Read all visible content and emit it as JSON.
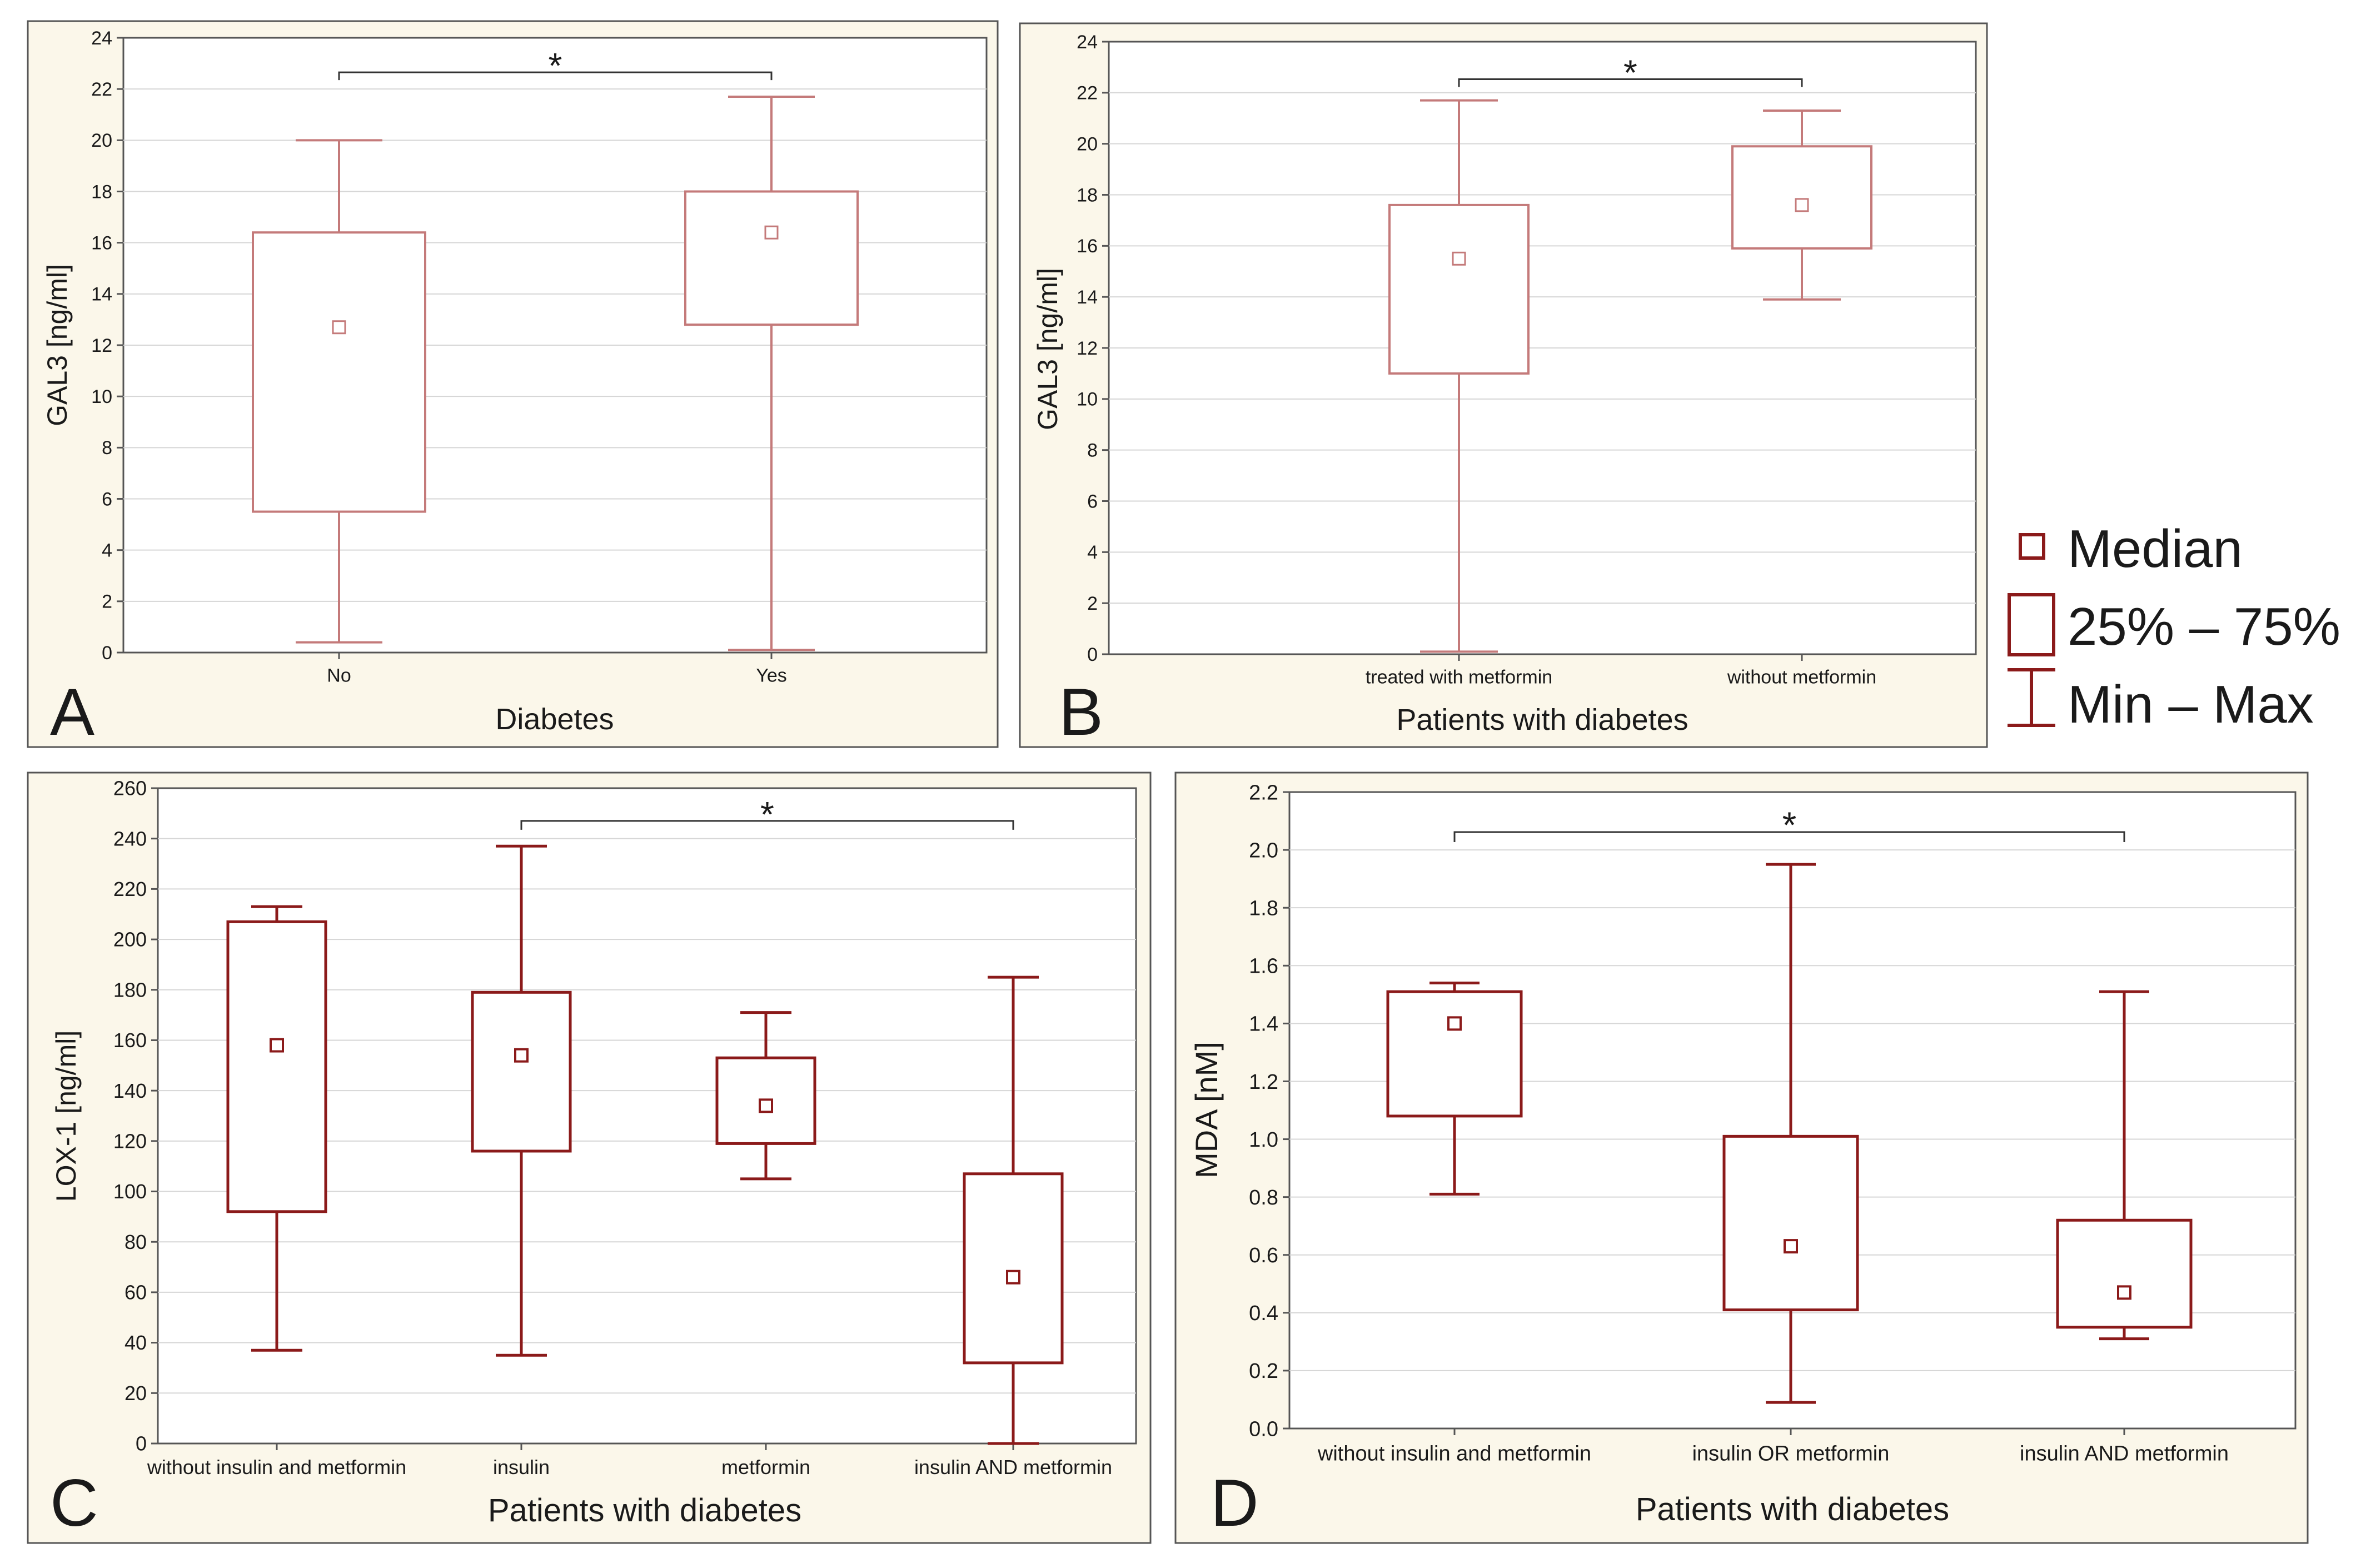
{
  "colors": {
    "panel_bg": "#fbf7ea",
    "plot_bg": "#ffffff",
    "frame": "#555555",
    "grid": "#d6d6d6",
    "box_stroke": "#8b1a1a",
    "box_stroke_light": "#c47a7a",
    "text": "#1a1a1a"
  },
  "legend": {
    "median_label": "Median",
    "box_label": "25% – 75%",
    "range_label": "Min – Max"
  },
  "chart_data": [
    {
      "panel_letter": "A",
      "type": "boxplot",
      "title": "",
      "xlabel": "Diabetes",
      "ylabel": "GAL3 [ng/ml]",
      "ylim": [
        0,
        24
      ],
      "yticks": [
        "0",
        "2",
        "4",
        "6",
        "8",
        "10",
        "12",
        "14",
        "16",
        "18",
        "20",
        "22",
        "24"
      ],
      "categories": [
        "No",
        "Yes"
      ],
      "boxes": [
        {
          "min": 0.4,
          "q1": 5.5,
          "median": 12.7,
          "q3": 16.4,
          "max": 20.0
        },
        {
          "min": 0.1,
          "q1": 12.8,
          "median": 16.4,
          "q3": 18.0,
          "max": 21.7
        }
      ],
      "significance": {
        "from": 0,
        "to": 1,
        "label": "*"
      }
    },
    {
      "panel_letter": "B",
      "type": "boxplot",
      "title": "",
      "xlabel": "Patients with diabetes",
      "ylabel": "GAL3 [ng/ml]",
      "ylim": [
        0,
        24
      ],
      "yticks": [
        "0",
        "2",
        "4",
        "6",
        "8",
        "10",
        "12",
        "14",
        "16",
        "18",
        "20",
        "22",
        "24"
      ],
      "categories": [
        "treated with metformin",
        "without metformin"
      ],
      "boxes": [
        {
          "min": 0.1,
          "q1": 11.0,
          "median": 15.5,
          "q3": 17.6,
          "max": 21.7
        },
        {
          "min": 13.9,
          "q1": 15.9,
          "median": 17.6,
          "q3": 19.9,
          "max": 21.3
        }
      ],
      "significance": {
        "from": 0,
        "to": 1,
        "label": "*"
      }
    },
    {
      "panel_letter": "C",
      "type": "boxplot",
      "title": "",
      "xlabel": "Patients with diabetes",
      "ylabel": "LOX-1 [ng/ml]",
      "ylim": [
        0,
        260
      ],
      "yticks": [
        "0",
        "20",
        "40",
        "60",
        "80",
        "100",
        "120",
        "140",
        "160",
        "180",
        "200",
        "220",
        "240",
        "260"
      ],
      "categories": [
        "without insulin and metformin",
        "insulin",
        "metformin",
        "insulin AND metformin"
      ],
      "boxes": [
        {
          "min": 37,
          "q1": 92,
          "median": 158,
          "q3": 207,
          "max": 213
        },
        {
          "min": 35,
          "q1": 116,
          "median": 154,
          "q3": 179,
          "max": 237
        },
        {
          "min": 105,
          "q1": 119,
          "median": 134,
          "q3": 153,
          "max": 171
        },
        {
          "min": 0,
          "q1": 32,
          "median": 66,
          "q3": 107,
          "max": 185
        }
      ],
      "significance": {
        "from": 1,
        "to": 3,
        "label": "*"
      }
    },
    {
      "panel_letter": "D",
      "type": "boxplot",
      "title": "",
      "xlabel": "Patients with diabetes",
      "ylabel": "MDA [nM]",
      "ylim": [
        0,
        2.2
      ],
      "yticks": [
        "0.0",
        "0.2",
        "0.4",
        "0.6",
        "0.8",
        "1.0",
        "1.2",
        "1.4",
        "1.6",
        "1.8",
        "2.0",
        "2.2"
      ],
      "categories": [
        "without insulin and metformin",
        "insulin OR metformin",
        "insulin AND metformin"
      ],
      "boxes": [
        {
          "min": 0.81,
          "q1": 1.08,
          "median": 1.4,
          "q3": 1.51,
          "max": 1.54
        },
        {
          "min": 0.09,
          "q1": 0.41,
          "median": 0.63,
          "q3": 1.01,
          "max": 1.95
        },
        {
          "min": 0.31,
          "q1": 0.35,
          "median": 0.47,
          "q3": 0.72,
          "max": 1.51
        }
      ],
      "significance": {
        "from": 0,
        "to": 2,
        "label": "*"
      }
    }
  ]
}
